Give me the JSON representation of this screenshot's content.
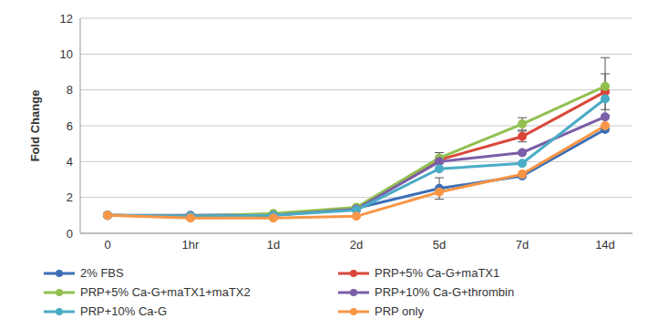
{
  "chart_data": {
    "type": "line",
    "y_label": "Fold Change",
    "categories": [
      "0",
      "1hr",
      "1d",
      "2d",
      "5d",
      "7d",
      "14d"
    ],
    "ylim": [
      0,
      12
    ],
    "yticks": [
      0,
      2,
      4,
      6,
      8,
      10,
      12
    ],
    "grid": true,
    "legend": "bottom",
    "marker": "circle",
    "series": [
      {
        "name": "2% FBS",
        "color": "#3d6fb6",
        "values": [
          1,
          1.0,
          1.05,
          1.4,
          2.5,
          3.2,
          5.8
        ],
        "errors": [
          null,
          null,
          null,
          null,
          0.6,
          null,
          null
        ]
      },
      {
        "name": "PRP+5% Ca-G+maTX1",
        "color": "#d9473a",
        "values": [
          1,
          0.95,
          1.0,
          1.4,
          4.1,
          5.4,
          7.9
        ],
        "errors": [
          null,
          null,
          null,
          null,
          null,
          0.3,
          1.0
        ]
      },
      {
        "name": "PRP+5% Ca-G+maTX1+maTX2",
        "color": "#92c050",
        "values": [
          1,
          0.95,
          1.1,
          1.45,
          4.2,
          6.1,
          8.2
        ],
        "errors": [
          null,
          null,
          null,
          null,
          0.3,
          0.35,
          1.6
        ]
      },
      {
        "name": "PRP+10% Ca-G+thrombin",
        "color": "#7b5ea7",
        "values": [
          1,
          0.95,
          1.0,
          1.35,
          4.0,
          4.5,
          6.5
        ],
        "errors": [
          null,
          null,
          null,
          null,
          null,
          null,
          null
        ]
      },
      {
        "name": "PRP+10% Ca-G",
        "color": "#4bacc6",
        "values": [
          1,
          0.95,
          1.0,
          1.3,
          3.6,
          3.9,
          7.5
        ],
        "errors": [
          null,
          null,
          null,
          null,
          null,
          null,
          null
        ]
      },
      {
        "name": "PRP only",
        "color": "#f79646",
        "values": [
          1,
          0.85,
          0.85,
          0.95,
          2.3,
          3.3,
          6.0
        ],
        "errors": [
          null,
          null,
          null,
          null,
          null,
          null,
          null
        ]
      }
    ]
  }
}
